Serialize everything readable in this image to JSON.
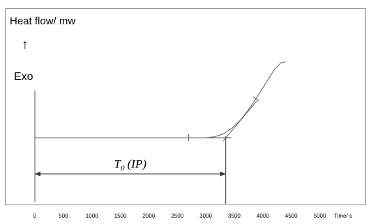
{
  "chart_data": {
    "type": "line",
    "ylabel": "Heat flow/ mw",
    "ylabel_arrow": "↑",
    "exo_label": "Exo",
    "xlabel": "Time/ s",
    "xlim": [
      0,
      5500
    ],
    "x_ticks": [
      0,
      500,
      1000,
      1500,
      2000,
      2500,
      3000,
      3500,
      4000,
      4500,
      5000
    ],
    "x_tick_labels": [
      "0",
      "500",
      "1000",
      "1500",
      "2000",
      "2500",
      "3000",
      "3500",
      "4000",
      "4500",
      "5000"
    ],
    "annotation": {
      "T": "T",
      "subscript": "0",
      "suffix": "(IP)",
      "onset_time": 3350
    },
    "series": [
      {
        "points": [
          [
            0,
            0
          ],
          [
            2700,
            0
          ],
          [
            3000,
            0.0
          ],
          [
            3150,
            0.01
          ],
          [
            3300,
            0.04
          ],
          [
            3450,
            0.1
          ],
          [
            3600,
            0.19
          ],
          [
            3750,
            0.31
          ],
          [
            3900,
            0.45
          ],
          [
            4050,
            0.6
          ],
          [
            4200,
            0.75
          ],
          [
            4320,
            0.83
          ],
          [
            4400,
            0.84
          ]
        ]
      }
    ],
    "baseline": {
      "x_start": 0,
      "x_end": 3450,
      "y": 0
    },
    "tangent": {
      "x_start": 3300,
      "y_start": -0.04,
      "x_end": 3900,
      "y_end": 0.41
    },
    "baseline_tick_x": 2700,
    "curve_tick_x": 3880,
    "grid": false,
    "frame": true
  }
}
